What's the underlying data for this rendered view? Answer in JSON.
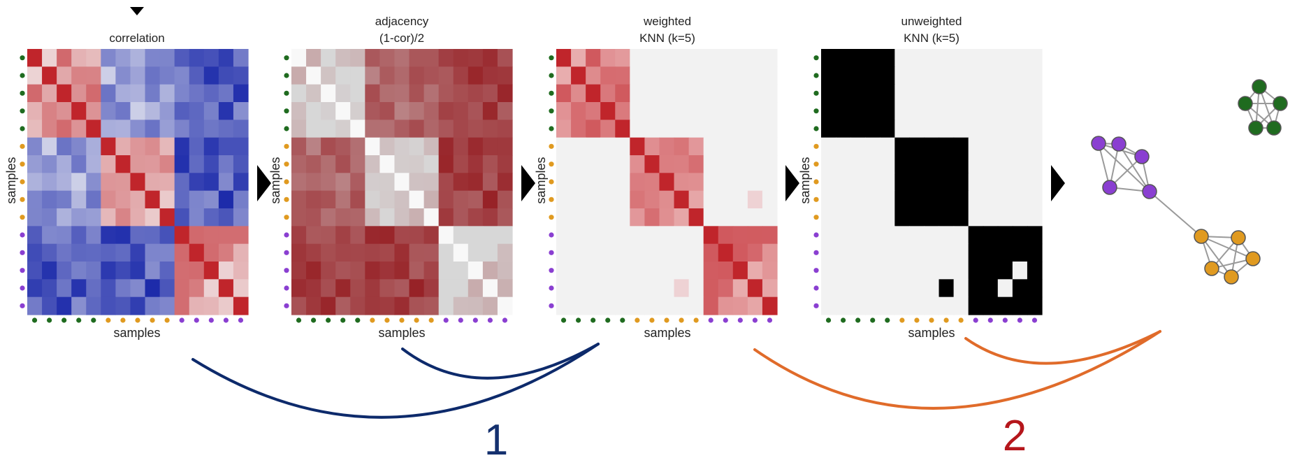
{
  "panels": [
    {
      "title_line1": "correlation",
      "title_line2": "",
      "xlabel": "samples",
      "ylabel": "samples",
      "scheme": "correlation"
    },
    {
      "title_line1": "adjacency",
      "title_line2": "(1-cor)/2",
      "xlabel": "samples",
      "ylabel": "samples",
      "scheme": "adjacency"
    },
    {
      "title_line1": "weighted",
      "title_line2": "KNN (k=5)",
      "xlabel": "samples",
      "ylabel": "samples",
      "scheme": "weighted"
    },
    {
      "title_line1": "unweighted",
      "title_line2": "KNN (k=5)",
      "xlabel": "samples",
      "ylabel": "samples",
      "scheme": "unweighted"
    }
  ],
  "groups": [
    {
      "color": "#1f6b1f",
      "size": 5
    },
    {
      "color": "#e09a20",
      "size": 5
    },
    {
      "color": "#8a3fd1",
      "size": 5
    }
  ],
  "colors": {
    "diag": "#c0252b",
    "dark_navy": "#0d2a6b",
    "orange": "#e06b2a",
    "label2_red": "#b5161b",
    "label1_navy": "#14306e"
  },
  "step_labels": {
    "one": "1",
    "two": "2"
  }
}
